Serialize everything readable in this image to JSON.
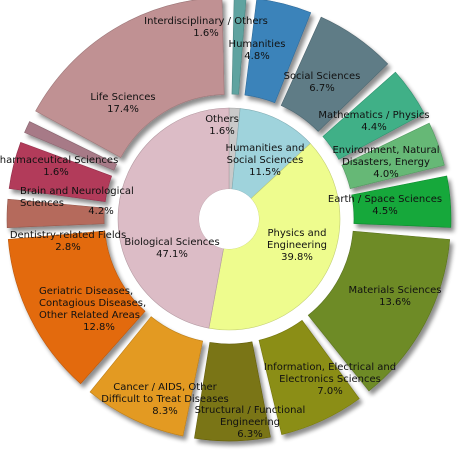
{
  "chart_data": {
    "type": "pie",
    "title": "",
    "inner": [
      {
        "label": "Others",
        "value_label": "1.6%",
        "value": 1.6,
        "color": "#c9c9c9"
      },
      {
        "label": "Humanities and Social Sciences",
        "value_label": "11.5%",
        "value": 11.5,
        "color": "#9fd3dc"
      },
      {
        "label": "Physics and Engineering",
        "value_label": "39.8%",
        "value": 39.8,
        "color": "#eefc8e"
      },
      {
        "label": "Biological Sciences",
        "value_label": "47.1%",
        "value": 47.1,
        "color": "#dcbcc6"
      }
    ],
    "outer": [
      {
        "label": "Interdisciplinary / Others",
        "value_label": "1.6%",
        "value": 1.6,
        "color": "#5ea3a0"
      },
      {
        "label": "Humanities",
        "value_label": "4.8%",
        "value": 4.8,
        "color": "#3b83ba"
      },
      {
        "label": "Social Sciences",
        "value_label": "6.7%",
        "value": 6.7,
        "color": "#5e7b86"
      },
      {
        "label": "Mathematics / Physics",
        "value_label": "4.4%",
        "value": 4.4,
        "color": "#3fb087"
      },
      {
        "label": "Environment, Natural Disasters, Energy",
        "value_label": "4.0%",
        "value": 4.0,
        "color": "#66b876"
      },
      {
        "label": "Earth / Space Sciences",
        "value_label": "4.5%",
        "value": 4.5,
        "color": "#14a83a"
      },
      {
        "label": "Materials Sciences",
        "value_label": "13.6%",
        "value": 13.6,
        "color": "#6e8b26"
      },
      {
        "label": "Information, Electrical and Electronics Sciences",
        "value_label": "7.0%",
        "value": 7.0,
        "color": "#8b8e12"
      },
      {
        "label": "Structural / Functional Engineering",
        "value_label": "6.3%",
        "value": 6.3,
        "color": "#7a7412"
      },
      {
        "label": "Cancer / AIDS, Other Difficult to Treat Diseases",
        "value_label": "8.3%",
        "value": 8.3,
        "color": "#e39a21"
      },
      {
        "label": "Geriatric Diseases, Contagious Diseases, Other Related Areas",
        "value_label": "12.8%",
        "value": 12.8,
        "color": "#e36a0b"
      },
      {
        "label": "Dentistry-related Fields",
        "value_label": "2.8%",
        "value": 2.8,
        "color": "#b56a5b"
      },
      {
        "label": "Brain and Neurological Sciences",
        "value_label": "4.2%",
        "value": 4.2,
        "color": "#b23b5a"
      },
      {
        "label": "Pharmaceutical Sciences",
        "value_label": "1.6%",
        "value": 1.6,
        "color": "#a77a87"
      },
      {
        "label": "Life Sciences",
        "value_label": "17.4%",
        "value": 17.4,
        "color": "#c09193"
      }
    ],
    "legend": "none",
    "grid": false
  }
}
